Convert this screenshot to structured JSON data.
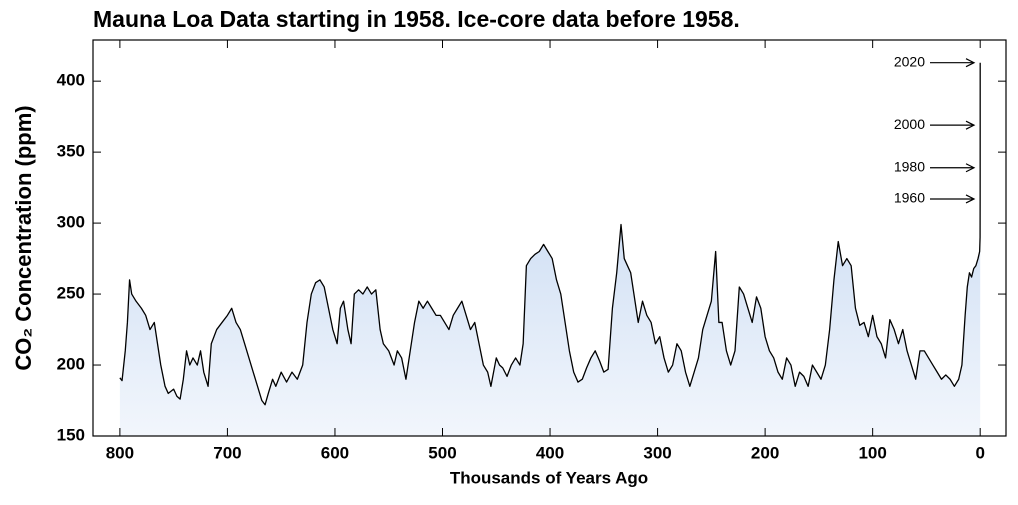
{
  "chart_data": {
    "type": "area",
    "title": "Mauna Loa Data starting in 1958. Ice-core data before 1958.",
    "x_label": "Thousands of Years Ago",
    "y_label": "CO₂ Concentration (ppm)",
    "color": "#000000",
    "fill_top": "#b9d0ef",
    "fill_bottom": "#f2f6fc",
    "xlim": [
      825,
      -24
    ],
    "ylim": [
      150,
      429
    ],
    "xticks": [
      800,
      700,
      600,
      500,
      400,
      300,
      200,
      100,
      0
    ],
    "yticks": [
      150,
      200,
      250,
      300,
      350,
      400
    ],
    "annotations": [
      {
        "text": "2020",
        "y": 413
      },
      {
        "text": "2000",
        "y": 369
      },
      {
        "text": "1980",
        "y": 339
      },
      {
        "text": "1960",
        "y": 317
      }
    ],
    "x": [
      800,
      798,
      795,
      793,
      791,
      789,
      785,
      780,
      776,
      772,
      768,
      765,
      762,
      758,
      755,
      750,
      747,
      744,
      741,
      738,
      735,
      732,
      728,
      725,
      722,
      718,
      715,
      710,
      705,
      700,
      696,
      692,
      688,
      684,
      680,
      676,
      672,
      668,
      665,
      662,
      658,
      655,
      650,
      645,
      640,
      635,
      630,
      626,
      622,
      618,
      614,
      610,
      606,
      602,
      598,
      595,
      592,
      588,
      585,
      582,
      578,
      574,
      570,
      566,
      562,
      558,
      555,
      550,
      545,
      542,
      538,
      534,
      530,
      526,
      522,
      518,
      514,
      510,
      506,
      502,
      498,
      494,
      490,
      486,
      482,
      478,
      474,
      470,
      466,
      462,
      458,
      455,
      450,
      447,
      444,
      440,
      436,
      432,
      428,
      425,
      422,
      418,
      414,
      410,
      406,
      402,
      398,
      394,
      390,
      386,
      382,
      378,
      374,
      370,
      366,
      362,
      358,
      354,
      350,
      346,
      342,
      338,
      334,
      331,
      328,
      325,
      322,
      318,
      314,
      310,
      306,
      302,
      298,
      294,
      290,
      286,
      282,
      278,
      274,
      270,
      266,
      262,
      258,
      254,
      250,
      246,
      243,
      240,
      236,
      232,
      228,
      224,
      220,
      216,
      212,
      208,
      204,
      200,
      196,
      192,
      188,
      184,
      180,
      176,
      172,
      168,
      164,
      160,
      156,
      152,
      148,
      144,
      140,
      136,
      132,
      128,
      124,
      120,
      116,
      112,
      108,
      104,
      100,
      96,
      92,
      88,
      84,
      80,
      76,
      72,
      68,
      64,
      60,
      56,
      52,
      48,
      44,
      40,
      36,
      32,
      28,
      24,
      20,
      17,
      14,
      12,
      10,
      8,
      6,
      4,
      2,
      0.5,
      0.1,
      0.05,
      0.03,
      0.01,
      0
    ],
    "values": [
      191,
      189,
      210,
      230,
      260,
      250,
      245,
      240,
      235,
      225,
      230,
      215,
      200,
      185,
      180,
      183,
      178,
      176,
      190,
      210,
      200,
      205,
      200,
      210,
      195,
      185,
      215,
      225,
      230,
      235,
      240,
      230,
      225,
      215,
      205,
      195,
      185,
      175,
      172,
      180,
      190,
      185,
      195,
      188,
      195,
      190,
      200,
      230,
      250,
      258,
      260,
      255,
      240,
      225,
      215,
      240,
      245,
      225,
      215,
      250,
      253,
      250,
      255,
      250,
      253,
      225,
      215,
      210,
      200,
      210,
      205,
      190,
      210,
      230,
      245,
      240,
      245,
      240,
      235,
      235,
      230,
      225,
      235,
      240,
      245,
      235,
      225,
      230,
      215,
      200,
      195,
      185,
      205,
      200,
      198,
      192,
      200,
      205,
      200,
      215,
      270,
      275,
      278,
      280,
      285,
      280,
      275,
      260,
      250,
      230,
      210,
      195,
      188,
      190,
      198,
      205,
      210,
      203,
      195,
      197,
      240,
      265,
      299,
      275,
      270,
      265,
      250,
      230,
      245,
      235,
      230,
      215,
      220,
      205,
      195,
      200,
      215,
      210,
      195,
      185,
      195,
      205,
      225,
      235,
      245,
      280,
      230,
      230,
      210,
      200,
      210,
      255,
      250,
      240,
      230,
      248,
      240,
      220,
      210,
      205,
      195,
      190,
      205,
      200,
      185,
      195,
      192,
      185,
      200,
      195,
      190,
      200,
      225,
      260,
      287,
      270,
      275,
      270,
      240,
      228,
      230,
      220,
      235,
      220,
      215,
      205,
      232,
      225,
      215,
      225,
      210,
      200,
      190,
      210,
      210,
      205,
      200,
      195,
      190,
      193,
      190,
      185,
      190,
      200,
      235,
      255,
      265,
      262,
      268,
      270,
      275,
      280,
      290,
      317,
      339,
      369,
      413
    ]
  }
}
